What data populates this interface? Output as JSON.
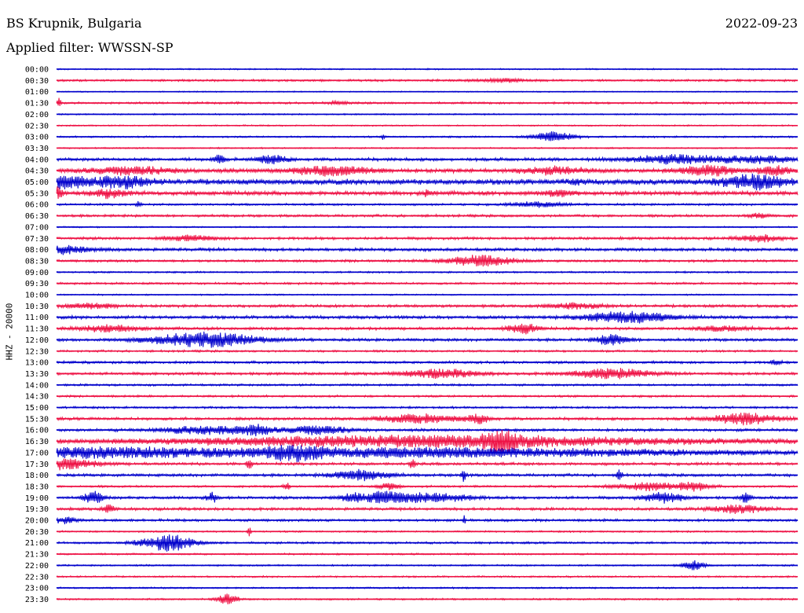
{
  "header": {
    "station": "BS Krupnik, Bulgaria",
    "date": "2022-09-23",
    "filter": "Applied filter: WWSSN-SP"
  },
  "chart_data": {
    "type": "line",
    "title": "BS Krupnik, Bulgaria",
    "subtitle": "Applied filter: WWSSN-SP",
    "ylabel": "HHZ - 20000",
    "colors": {
      "even_row": "#0000cc",
      "odd_row": "#ee1144"
    },
    "row_labels": [
      "00:00",
      "00:30",
      "01:00",
      "01:30",
      "02:00",
      "02:30",
      "03:00",
      "03:30",
      "04:00",
      "04:30",
      "05:00",
      "05:30",
      "06:00",
      "06:30",
      "07:00",
      "07:30",
      "08:00",
      "08:30",
      "09:00",
      "09:30",
      "10:00",
      "10:30",
      "11:00",
      "11:30",
      "12:00",
      "12:30",
      "13:00",
      "13:30",
      "14:00",
      "14:30",
      "15:00",
      "15:30",
      "16:00",
      "16:30",
      "17:00",
      "17:30",
      "18:00",
      "18:30",
      "19:00",
      "19:30",
      "20:00",
      "20:30",
      "21:00",
      "21:30",
      "22:00",
      "22:30",
      "23:00",
      "23:30"
    ],
    "noise_level": [
      1,
      1.5,
      0.8,
      1.5,
      1,
      1,
      1.2,
      1,
      2.2,
      3,
      4,
      3,
      1.5,
      1.8,
      1,
      2,
      2.2,
      1.8,
      1.2,
      1.5,
      1,
      2,
      2.2,
      2,
      2,
      1.5,
      1.8,
      2,
      1.5,
      1.5,
      1.5,
      2,
      2,
      3,
      3,
      2,
      2,
      1.5,
      2,
      2,
      1.8,
      1.2,
      1.5,
      1.2,
      1.2,
      1.2,
      1.2,
      1.2
    ],
    "events": [
      {
        "row": 1,
        "t": [
          [
            0.6,
            0.05,
            2
          ]
        ]
      },
      {
        "row": 3,
        "t": [
          [
            0.003,
            0.004,
            7
          ],
          [
            0.38,
            0.02,
            2
          ]
        ]
      },
      {
        "row": 6,
        "t": [
          [
            0.44,
            0.003,
            3
          ],
          [
            0.67,
            0.04,
            6
          ]
        ]
      },
      {
        "row": 8,
        "t": [
          [
            0.22,
            0.01,
            5
          ],
          [
            0.29,
            0.03,
            5
          ],
          [
            0.84,
            0.1,
            5
          ],
          [
            0.95,
            0.06,
            4
          ]
        ]
      },
      {
        "row": 9,
        "t": [
          [
            0.1,
            0.08,
            4
          ],
          [
            0.37,
            0.08,
            5
          ],
          [
            0.67,
            0.06,
            4
          ],
          [
            0.88,
            0.05,
            6
          ],
          [
            0.97,
            0.03,
            5
          ]
        ]
      },
      {
        "row": 10,
        "t": [
          [
            0.0,
            0.06,
            7
          ],
          [
            0.09,
            0.05,
            6
          ],
          [
            0.7,
            0.01,
            3
          ],
          [
            0.94,
            0.06,
            8
          ]
        ]
      },
      {
        "row": 11,
        "t": [
          [
            0.0,
            0.01,
            8
          ],
          [
            0.07,
            0.03,
            5
          ],
          [
            0.5,
            0.005,
            6
          ],
          [
            0.68,
            0.03,
            3
          ]
        ]
      },
      {
        "row": 12,
        "t": [
          [
            0.11,
            0.005,
            4
          ],
          [
            0.65,
            0.05,
            3
          ]
        ]
      },
      {
        "row": 13,
        "t": [
          [
            0.95,
            0.02,
            3
          ]
        ]
      },
      {
        "row": 15,
        "t": [
          [
            0.18,
            0.05,
            3
          ],
          [
            0.95,
            0.04,
            4
          ]
        ]
      },
      {
        "row": 16,
        "t": [
          [
            0.0,
            0.06,
            5
          ]
        ]
      },
      {
        "row": 17,
        "t": [
          [
            0.57,
            0.06,
            7
          ]
        ]
      },
      {
        "row": 21,
        "t": [
          [
            0.05,
            0.05,
            3
          ],
          [
            0.7,
            0.05,
            3
          ]
        ]
      },
      {
        "row": 22,
        "t": [
          [
            0.77,
            0.08,
            7
          ]
        ]
      },
      {
        "row": 23,
        "t": [
          [
            0.07,
            0.06,
            4
          ],
          [
            0.63,
            0.03,
            6
          ],
          [
            0.9,
            0.05,
            3
          ]
        ]
      },
      {
        "row": 24,
        "t": [
          [
            0.2,
            0.1,
            9
          ],
          [
            0.75,
            0.03,
            7
          ]
        ]
      },
      {
        "row": 26,
        "t": [
          [
            0.97,
            0.01,
            3
          ]
        ]
      },
      {
        "row": 27,
        "t": [
          [
            0.52,
            0.07,
            5
          ],
          [
            0.75,
            0.07,
            6
          ]
        ]
      },
      {
        "row": 31,
        "t": [
          [
            0.49,
            0.08,
            5
          ],
          [
            0.57,
            0.02,
            5
          ],
          [
            0.93,
            0.06,
            7
          ]
        ]
      },
      {
        "row": 32,
        "t": [
          [
            0.2,
            0.08,
            5
          ],
          [
            0.27,
            0.03,
            6
          ],
          [
            0.35,
            0.06,
            5
          ]
        ]
      },
      {
        "row": 33,
        "t": [
          [
            0.51,
            0.45,
            6
          ],
          [
            0.6,
            0.03,
            10
          ]
        ]
      },
      {
        "row": 34,
        "t": [
          [
            0.04,
            0.25,
            5
          ],
          [
            0.32,
            0.05,
            6
          ],
          [
            0.5,
            0.45,
            5
          ]
        ]
      },
      {
        "row": 35,
        "t": [
          [
            0.0,
            0.07,
            7
          ],
          [
            0.26,
            0.005,
            6
          ],
          [
            0.48,
            0.005,
            7
          ]
        ]
      },
      {
        "row": 36,
        "t": [
          [
            0.41,
            0.05,
            7
          ],
          [
            0.55,
            0.005,
            8
          ],
          [
            0.76,
            0.005,
            7
          ]
        ]
      },
      {
        "row": 37,
        "t": [
          [
            0.31,
            0.005,
            6
          ],
          [
            0.45,
            0.02,
            4
          ],
          [
            0.8,
            0.06,
            5
          ],
          [
            0.86,
            0.03,
            5
          ]
        ]
      },
      {
        "row": 38,
        "t": [
          [
            0.05,
            0.02,
            7
          ],
          [
            0.21,
            0.01,
            6
          ],
          [
            0.4,
            0.03,
            5
          ],
          [
            0.44,
            0.03,
            6
          ],
          [
            0.48,
            0.05,
            5
          ],
          [
            0.53,
            0.05,
            4
          ],
          [
            0.82,
            0.04,
            6
          ],
          [
            0.93,
            0.01,
            6
          ]
        ]
      },
      {
        "row": 39,
        "t": [
          [
            0.07,
            0.01,
            6
          ],
          [
            0.92,
            0.05,
            5
          ]
        ]
      },
      {
        "row": 40,
        "t": [
          [
            0.01,
            0.02,
            4
          ],
          [
            0.55,
            0.003,
            5
          ]
        ]
      },
      {
        "row": 41,
        "t": [
          [
            0.26,
            0.003,
            6
          ]
        ]
      },
      {
        "row": 42,
        "t": [
          [
            0.15,
            0.05,
            10
          ]
        ]
      },
      {
        "row": 44,
        "t": [
          [
            0.86,
            0.02,
            6
          ]
        ]
      },
      {
        "row": 47,
        "t": [
          [
            0.23,
            0.02,
            6
          ]
        ]
      }
    ]
  }
}
